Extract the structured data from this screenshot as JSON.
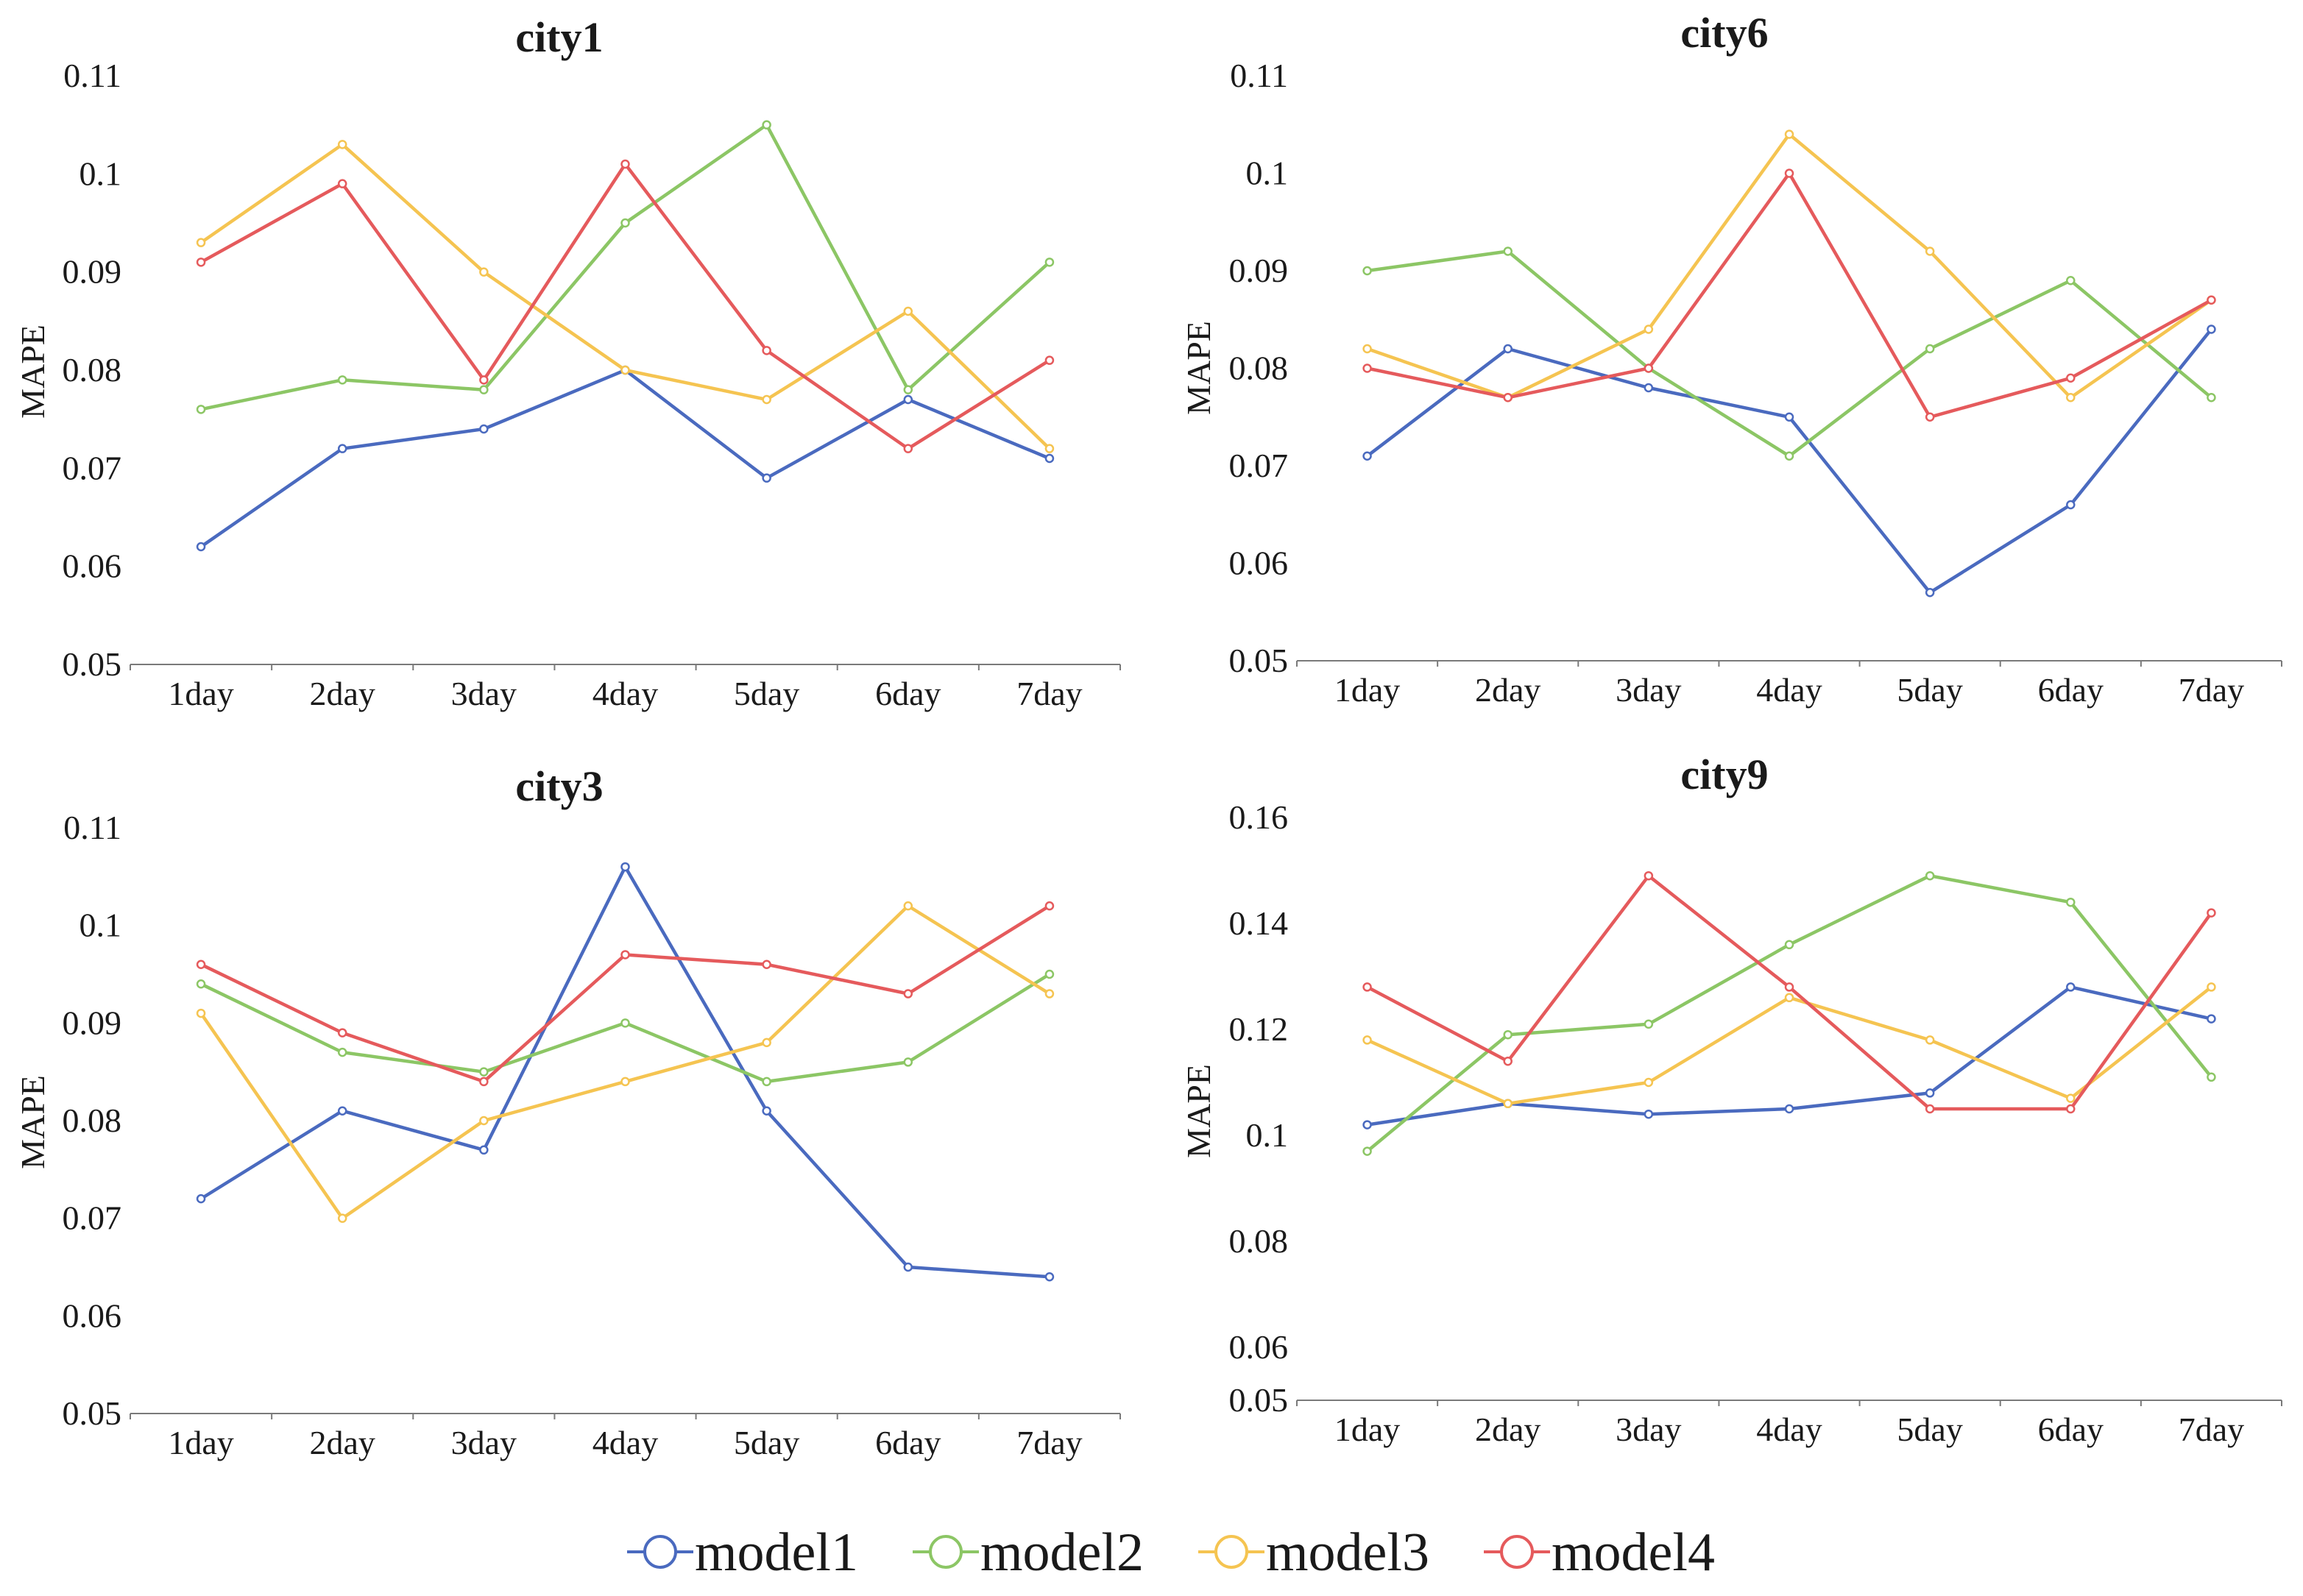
{
  "chart_data": [
    {
      "type": "line",
      "title": "city1",
      "xlabel": "",
      "ylabel": "MAPE",
      "categories": [
        "1day",
        "2day",
        "3day",
        "4day",
        "5day",
        "6day",
        "7day"
      ],
      "ylim": [
        0.05,
        0.11
      ],
      "yticks": [
        "0.05",
        "0.06",
        "0.07",
        "0.08",
        "0.09",
        "0.1",
        "0.11"
      ],
      "series": [
        {
          "name": "model1",
          "values": [
            0.062,
            0.072,
            0.074,
            0.08,
            0.069,
            0.077,
            0.071
          ]
        },
        {
          "name": "model2",
          "values": [
            0.076,
            0.079,
            0.078,
            0.095,
            0.105,
            0.078,
            0.091
          ]
        },
        {
          "name": "model3",
          "values": [
            0.093,
            0.103,
            0.09,
            0.08,
            0.077,
            0.086,
            0.072
          ]
        },
        {
          "name": "model4",
          "values": [
            0.091,
            0.099,
            0.079,
            0.101,
            0.082,
            0.072,
            0.081
          ]
        }
      ]
    },
    {
      "type": "line",
      "title": "city6",
      "xlabel": "",
      "ylabel": "MAPE",
      "categories": [
        "1day",
        "2day",
        "3day",
        "4day",
        "5day",
        "6day",
        "7day"
      ],
      "ylim": [
        0.05,
        0.11
      ],
      "yticks": [
        "0.05",
        "0.06",
        "0.07",
        "0.08",
        "0.09",
        "0.1",
        "0.11"
      ],
      "series": [
        {
          "name": "model1",
          "values": [
            0.071,
            0.082,
            0.078,
            0.075,
            0.057,
            0.066,
            0.084
          ]
        },
        {
          "name": "model2",
          "values": [
            0.09,
            0.092,
            0.08,
            0.071,
            0.082,
            0.089,
            0.077
          ]
        },
        {
          "name": "model3",
          "values": [
            0.082,
            0.077,
            0.084,
            0.104,
            0.092,
            0.077,
            0.087
          ]
        },
        {
          "name": "model4",
          "values": [
            0.08,
            0.077,
            0.08,
            0.1,
            0.075,
            0.079,
            0.087
          ]
        }
      ]
    },
    {
      "type": "line",
      "title": "city3",
      "xlabel": "",
      "ylabel": "MAPE",
      "categories": [
        "1day",
        "2day",
        "3day",
        "4day",
        "5day",
        "6day",
        "7day"
      ],
      "ylim": [
        0.05,
        0.11
      ],
      "yticks": [
        "0.05",
        "0.06",
        "0.07",
        "0.08",
        "0.09",
        "0.1",
        "0.11"
      ],
      "series": [
        {
          "name": "model1",
          "values": [
            0.072,
            0.081,
            0.077,
            0.106,
            0.081,
            0.065,
            0.064
          ]
        },
        {
          "name": "model2",
          "values": [
            0.094,
            0.087,
            0.085,
            0.09,
            0.084,
            0.086,
            0.095
          ]
        },
        {
          "name": "model3",
          "values": [
            0.091,
            0.07,
            0.08,
            0.084,
            0.088,
            0.102,
            0.093
          ]
        },
        {
          "name": "model4",
          "values": [
            0.096,
            0.089,
            0.084,
            0.097,
            0.096,
            0.093,
            0.102
          ]
        }
      ]
    },
    {
      "type": "line",
      "title": "city9",
      "xlabel": "",
      "ylabel": "MAPE",
      "categories": [
        "1day",
        "2day",
        "3day",
        "4day",
        "5day",
        "6day",
        "7day"
      ],
      "ylim": [
        0.05,
        0.16
      ],
      "yticks": [
        "0.05",
        "0.06",
        "0.08",
        "0.1",
        "0.12",
        "0.14",
        "0.16"
      ],
      "series": [
        {
          "name": "model1",
          "values": [
            0.102,
            0.106,
            0.104,
            0.105,
            0.108,
            0.128,
            0.122
          ]
        },
        {
          "name": "model2",
          "values": [
            0.097,
            0.119,
            0.121,
            0.136,
            0.149,
            0.144,
            0.111
          ]
        },
        {
          "name": "model3",
          "values": [
            0.118,
            0.106,
            0.11,
            0.126,
            0.118,
            0.107,
            0.128
          ]
        },
        {
          "name": "model4",
          "values": [
            0.128,
            0.114,
            0.149,
            0.128,
            0.105,
            0.105,
            0.142
          ]
        }
      ]
    }
  ],
  "legend": {
    "position": "bottom-center",
    "items": [
      {
        "label": "model1",
        "color": "#4a6abf"
      },
      {
        "label": "model2",
        "color": "#8cc665"
      },
      {
        "label": "model3",
        "color": "#f5c451"
      },
      {
        "label": "model4",
        "color": "#e55a5c"
      }
    ]
  }
}
